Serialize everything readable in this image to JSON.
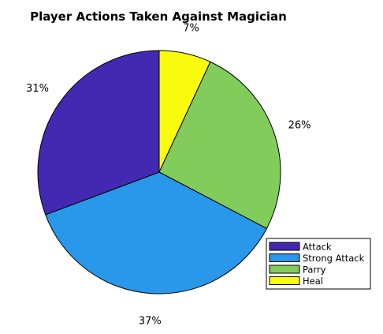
{
  "chart_data": {
    "type": "pie",
    "title": "Player Actions Taken Against Magician",
    "slices": [
      {
        "label": "Heal",
        "value": 7,
        "display": "7%",
        "color": "#f9fb0e"
      },
      {
        "label": "Parry",
        "value": 26,
        "display": "26%",
        "color": "#81cc5a"
      },
      {
        "label": "Strong Attack",
        "value": 37,
        "display": "37%",
        "color": "#2997ea"
      },
      {
        "label": "Attack",
        "value": 31,
        "display": "31%",
        "color": "#4329b2"
      }
    ],
    "legend": {
      "placement": "bottom-right",
      "order": [
        "Attack",
        "Strong Attack",
        "Parry",
        "Heal"
      ]
    },
    "start": "top",
    "direction": "clockwise"
  }
}
